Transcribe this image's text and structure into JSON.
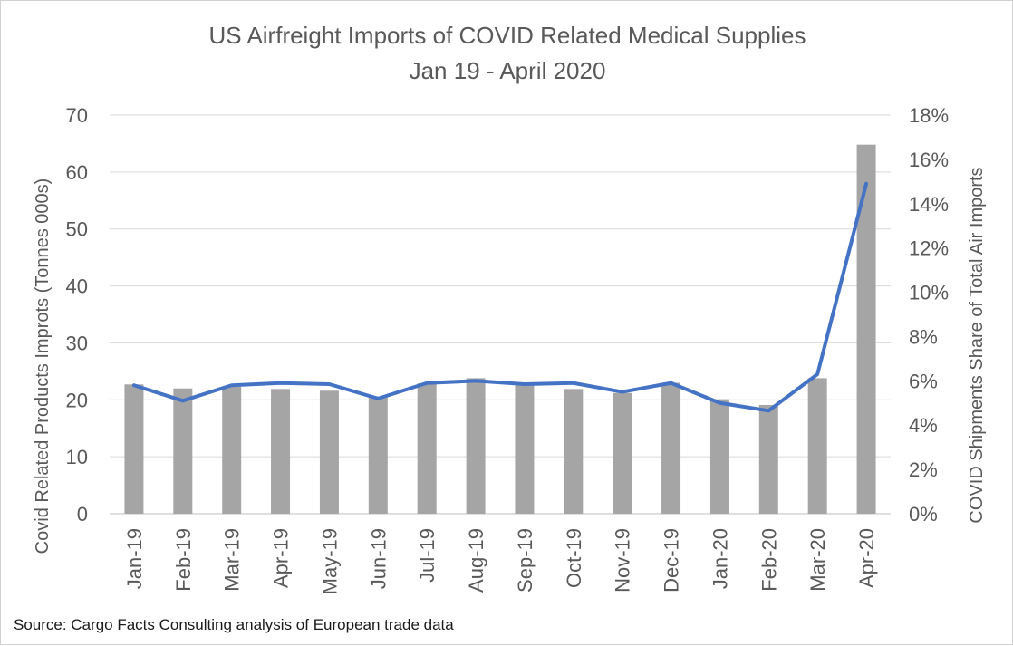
{
  "chart_data": {
    "type": "bar",
    "title": "US Airfreight Imports of COVID Related Medical Supplies",
    "subtitle": "Jan 19 - April 2020",
    "categories": [
      "Jan-19",
      "Feb-19",
      "Mar-19",
      "Apr-19",
      "May-19",
      "Jun-19",
      "Jul-19",
      "Aug-19",
      "Sep-19",
      "Oct-19",
      "Nov-19",
      "Dec-19",
      "Jan-20",
      "Feb-20",
      "Mar-20",
      "Apr-20"
    ],
    "series": [
      {
        "type": "bar",
        "axis": "left",
        "values": [
          22.7,
          22.0,
          22.3,
          21.9,
          21.6,
          20.6,
          22.9,
          23.8,
          22.8,
          21.9,
          21.2,
          23.0,
          20.1,
          19.1,
          23.8,
          64.8
        ],
        "color": "#a5a5a5"
      },
      {
        "type": "line",
        "axis": "right",
        "values": [
          5.8,
          5.1,
          5.8,
          5.9,
          5.85,
          5.2,
          5.9,
          6.0,
          5.85,
          5.9,
          5.5,
          5.9,
          5.0,
          4.65,
          6.3,
          14.9
        ],
        "color": "#4472c4"
      }
    ],
    "y_left": {
      "label": "Covid Related Products Improts  (Tonnes 000s)",
      "ylim": [
        0,
        70
      ],
      "ticks": [
        "0",
        "10",
        "20",
        "30",
        "40",
        "50",
        "60",
        "70"
      ]
    },
    "y_right": {
      "label": "COVID Shipments Share of Total Air Imports",
      "ylim": [
        0,
        18
      ],
      "ticks": [
        "0%",
        "2%",
        "4%",
        "6%",
        "8%",
        "10%",
        "12%",
        "14%",
        "16%",
        "18%"
      ]
    },
    "grid": true,
    "legend": "none",
    "source": "Source: Cargo Facts Consulting analysis of European trade data"
  }
}
